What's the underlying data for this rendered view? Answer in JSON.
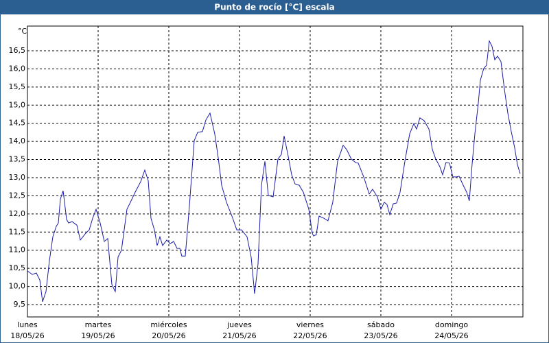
{
  "chart_data": {
    "type": "line",
    "title": "Punto de rocío [°C] escala",
    "y_unit": "°C",
    "color": "#1a1aa8",
    "x": [
      0,
      0.068,
      0.126,
      0.175,
      0.214,
      0.262,
      0.311,
      0.359,
      0.408,
      0.437,
      0.466,
      0.505,
      0.553,
      0.583,
      0.631,
      0.699,
      0.748,
      0.825,
      0.874,
      0.922,
      0.971,
      1.029,
      1.087,
      1.136,
      1.194,
      1.243,
      1.282,
      1.33,
      1.408,
      1.456,
      1.524,
      1.602,
      1.66,
      1.709,
      1.748,
      1.796,
      1.835,
      1.874,
      1.913,
      1.971,
      2.019,
      2.068,
      2.117,
      2.155,
      2.184,
      2.233,
      2.291,
      2.359,
      2.408,
      2.476,
      2.524,
      2.583,
      2.65,
      2.699,
      2.748,
      2.816,
      2.893,
      2.961,
      3.029,
      3.107,
      3.165,
      3.214,
      3.262,
      3.311,
      3.359,
      3.408,
      3.476,
      3.544,
      3.592,
      3.631,
      3.689,
      3.738,
      3.786,
      3.845,
      3.903,
      3.981,
      4.029,
      4.049,
      4.087,
      4.126,
      4.194,
      4.252,
      4.32,
      4.388,
      4.466,
      4.515,
      4.583,
      4.641,
      4.68,
      4.757,
      4.835,
      4.883,
      4.951,
      5.0,
      5.049,
      5.087,
      5.126,
      5.175,
      5.223,
      5.272,
      5.34,
      5.408,
      5.466,
      5.505,
      5.553,
      5.612,
      5.68,
      5.728,
      5.777,
      5.835,
      5.874,
      5.922,
      5.971,
      6.019,
      6.068,
      6.107,
      6.165,
      6.214,
      6.252,
      6.291,
      6.33,
      6.379,
      6.408,
      6.456,
      6.495,
      6.534,
      6.573,
      6.612,
      6.65,
      6.699,
      6.748,
      6.796,
      6.845,
      6.893,
      6.932,
      6.971
    ],
    "values": [
      10.43,
      10.33,
      10.37,
      10.18,
      9.58,
      9.86,
      10.71,
      11.37,
      11.66,
      11.75,
      12.41,
      12.64,
      11.85,
      11.75,
      11.79,
      11.69,
      11.28,
      11.47,
      11.56,
      11.88,
      12.13,
      11.75,
      11.24,
      11.32,
      10.05,
      9.86,
      10.81,
      11.0,
      12.13,
      12.32,
      12.6,
      12.89,
      13.21,
      12.92,
      11.88,
      11.56,
      11.13,
      11.37,
      11.13,
      11.28,
      11.18,
      11.24,
      11.05,
      11.05,
      10.84,
      10.84,
      12.22,
      14.02,
      14.25,
      14.27,
      14.59,
      14.78,
      14.21,
      13.55,
      12.79,
      12.32,
      11.94,
      11.56,
      11.56,
      11.37,
      10.81,
      9.8,
      10.62,
      12.79,
      13.45,
      12.51,
      12.47,
      13.51,
      13.64,
      14.15,
      13.59,
      13.08,
      12.83,
      12.79,
      12.6,
      12.13,
      11.47,
      11.39,
      11.43,
      11.94,
      11.88,
      11.81,
      12.32,
      13.45,
      13.89,
      13.78,
      13.51,
      13.42,
      13.4,
      13.02,
      12.55,
      12.68,
      12.47,
      12.13,
      12.32,
      12.26,
      11.98,
      12.28,
      12.3,
      12.6,
      13.45,
      14.21,
      14.49,
      14.34,
      14.65,
      14.57,
      14.34,
      13.78,
      13.51,
      13.3,
      13.08,
      13.42,
      13.4,
      13.02,
      13.02,
      13.04,
      12.79,
      12.6,
      12.36,
      13.36,
      14.21,
      15.06,
      15.69,
      16.01,
      16.1,
      16.77,
      16.62,
      16.25,
      16.35,
      16.2,
      15.44,
      14.78,
      14.27,
      13.83,
      13.36,
      13.11
    ],
    "xlim": [
      0,
      7.01
    ],
    "xticks": [
      {
        "value": 0,
        "label": "lunes"
      },
      {
        "value": 1,
        "label": "martes"
      },
      {
        "value": 2,
        "label": "miércoles"
      },
      {
        "value": 3,
        "label": "jueves"
      },
      {
        "value": 4,
        "label": "viernes"
      },
      {
        "value": 5,
        "label": "sábado"
      },
      {
        "value": 6,
        "label": "domingo"
      }
    ],
    "xtick_dates": [
      "18/05/26",
      "19/05/26",
      "20/05/26",
      "21/05/26",
      "22/05/26",
      "23/05/26",
      "24/05/26"
    ],
    "ylim": [
      9.16,
      17.18
    ],
    "yticks": [
      {
        "value": 9.5,
        "label": "9,5"
      },
      {
        "value": 10,
        "label": "10,0"
      },
      {
        "value": 10.5,
        "label": "10,5"
      },
      {
        "value": 11,
        "label": "11,0"
      },
      {
        "value": 11.5,
        "label": "11,5"
      },
      {
        "value": 12,
        "label": "12,0"
      },
      {
        "value": 12.5,
        "label": "12,5"
      },
      {
        "value": 13,
        "label": "13,0"
      },
      {
        "value": 13.5,
        "label": "13,5"
      },
      {
        "value": 14,
        "label": "14,0"
      },
      {
        "value": 14.5,
        "label": "14,5"
      },
      {
        "value": 15,
        "label": "15,0"
      },
      {
        "value": 15.5,
        "label": "15,5"
      },
      {
        "value": 16,
        "label": "16,0"
      },
      {
        "value": 16.5,
        "label": "16,5"
      }
    ],
    "grid": true
  }
}
